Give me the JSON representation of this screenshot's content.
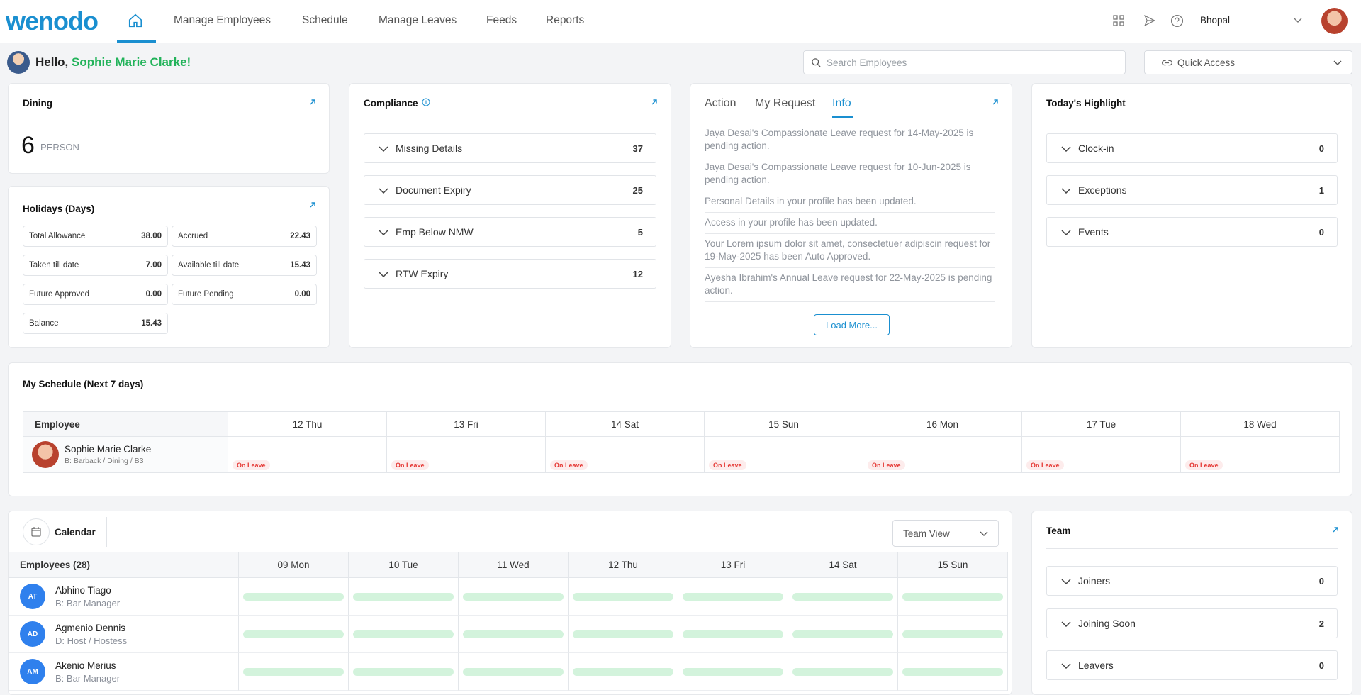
{
  "header": {
    "logo": "wenodo",
    "nav": [
      "Manage Employees",
      "Schedule",
      "Manage Leaves",
      "Feeds",
      "Reports"
    ],
    "location": "Bhopal"
  },
  "greeting": {
    "hello": "Hello,",
    "name": "Sophie Marie Clarke!"
  },
  "search": "Search Employees",
  "quick_access": "Quick Access",
  "dining": {
    "title": "Dining",
    "count": 6,
    "unit": "PERSON"
  },
  "holidays": {
    "title": "Holidays (Days)",
    "items": [
      {
        "label": "Total Allowance",
        "value": "38.00"
      },
      {
        "label": "Accrued",
        "value": "22.43"
      },
      {
        "label": "Taken till date",
        "value": "7.00"
      },
      {
        "label": "Available till date",
        "value": "15.43"
      },
      {
        "label": "Future Approved",
        "value": "0.00"
      },
      {
        "label": "Future Pending",
        "value": "0.00"
      },
      {
        "label": "Balance",
        "value": "15.43"
      }
    ]
  },
  "compliance": {
    "title": "Compliance",
    "items": [
      {
        "label": "Missing Details",
        "count": 37
      },
      {
        "label": "Document Expiry",
        "count": 25
      },
      {
        "label": "Emp Below NMW",
        "count": 5
      },
      {
        "label": "RTW Expiry",
        "count": 12
      }
    ]
  },
  "requests": {
    "tabs": [
      "Action",
      "My Request",
      "Info"
    ],
    "items": [
      "Jaya Desai's Compassionate Leave request for 14-May-2025 is pending action.",
      "Jaya Desai's Compassionate Leave request for 10-Jun-2025 is pending action.",
      "Personal Details in your profile has been updated.",
      "Access in your profile has been updated.",
      "Your Lorem ipsum dolor sit amet, consectetuer adipiscin request for 19-May-2025 has been Auto Approved.",
      "Ayesha Ibrahim's Annual Leave request for 22-May-2025 is pending action."
    ],
    "load_more": "Load More..."
  },
  "highlight": {
    "title": "Today's Highlight",
    "items": [
      {
        "label": "Clock-in",
        "count": 0
      },
      {
        "label": "Exceptions",
        "count": 1
      },
      {
        "label": "Events",
        "count": 0
      }
    ]
  },
  "schedule": {
    "title": "My Schedule (Next 7 days)",
    "columns": [
      "Employee",
      "12 Thu",
      "13 Fri",
      "14 Sat",
      "15 Sun",
      "16 Mon",
      "17 Tue",
      "18 Wed"
    ],
    "rows": [
      {
        "name": "Sophie Marie Clarke",
        "role": "B: Barback / Dining / B3",
        "cells": [
          "On Leave",
          "On Leave",
          "On Leave",
          "On Leave",
          "On Leave",
          "On Leave",
          "On Leave"
        ]
      }
    ]
  },
  "calendar": {
    "title": "Calendar",
    "view": "Team View",
    "columns": [
      "Employees (28)",
      "09 Mon",
      "10 Tue",
      "11 Wed",
      "12 Thu",
      "13 Fri",
      "14 Sat",
      "15 Sun"
    ],
    "rows": [
      {
        "initials": "AT",
        "name": "Abhino Tiago",
        "role": "B: Bar Manager"
      },
      {
        "initials": "AD",
        "name": "Agmenio Dennis",
        "role": "D: Host / Hostess"
      },
      {
        "initials": "AM",
        "name": "Akenio Merius",
        "role": "B: Bar Manager"
      }
    ]
  },
  "team": {
    "title": "Team",
    "items": [
      {
        "label": "Joiners",
        "count": 0
      },
      {
        "label": "Joining Soon",
        "count": 2
      },
      {
        "label": "Leavers",
        "count": 0
      }
    ]
  }
}
